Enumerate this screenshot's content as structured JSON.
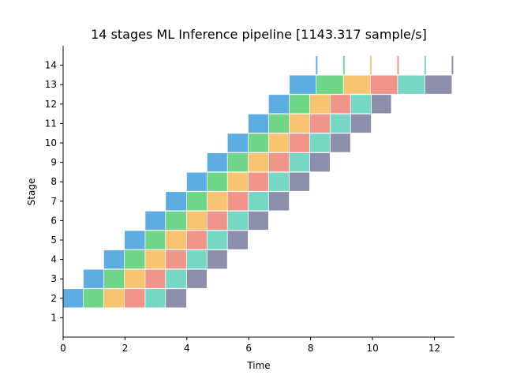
{
  "chart_data": {
    "type": "bar",
    "subtype": "gantt",
    "title": "14 stages ML Inference pipeline [1143.317 sample/s]",
    "xlabel": "Time",
    "ylabel": "Stage",
    "xlim": [
      0,
      12.65
    ],
    "ylim": [
      0,
      15
    ],
    "x_ticks": [
      "0",
      "2",
      "4",
      "6",
      "8",
      "10",
      "12"
    ],
    "y_ticks": [
      "1",
      "2",
      "3",
      "4",
      "5",
      "6",
      "7",
      "8",
      "9",
      "10",
      "11",
      "12",
      "13",
      "14"
    ],
    "grid": false,
    "spines_visible": [
      "left",
      "bottom"
    ],
    "bar_height": 0.95,
    "segment_colors": [
      "#5dade2",
      "#6fd688",
      "#f8c471",
      "#f1948a",
      "#76d7c4",
      "#8c8fab"
    ],
    "rows": [
      {
        "stage": 2,
        "segments": [
          [
            0,
            0.64
          ],
          [
            0.66,
            1.3
          ],
          [
            1.32,
            1.97
          ],
          [
            1.99,
            2.64
          ],
          [
            2.66,
            3.3
          ],
          [
            3.32,
            3.98
          ]
        ]
      },
      {
        "stage": 3,
        "segments": [
          [
            0.66,
            1.3
          ],
          [
            1.32,
            1.97
          ],
          [
            1.99,
            2.64
          ],
          [
            2.66,
            3.3
          ],
          [
            3.32,
            3.98
          ],
          [
            4.0,
            4.64
          ]
        ]
      },
      {
        "stage": 4,
        "segments": [
          [
            1.32,
            1.97
          ],
          [
            1.99,
            2.64
          ],
          [
            2.66,
            3.3
          ],
          [
            3.32,
            3.98
          ],
          [
            4.0,
            4.64
          ],
          [
            4.66,
            5.3
          ]
        ]
      },
      {
        "stage": 5,
        "segments": [
          [
            1.99,
            2.64
          ],
          [
            2.66,
            3.3
          ],
          [
            3.32,
            3.98
          ],
          [
            4.0,
            4.64
          ],
          [
            4.66,
            5.3
          ],
          [
            5.32,
            5.97
          ]
        ]
      },
      {
        "stage": 6,
        "segments": [
          [
            2.66,
            3.3
          ],
          [
            3.32,
            3.98
          ],
          [
            4.0,
            4.64
          ],
          [
            4.66,
            5.3
          ],
          [
            5.32,
            5.97
          ],
          [
            5.99,
            6.63
          ]
        ]
      },
      {
        "stage": 7,
        "segments": [
          [
            3.32,
            3.98
          ],
          [
            4.0,
            4.64
          ],
          [
            4.66,
            5.3
          ],
          [
            5.32,
            5.97
          ],
          [
            5.99,
            6.63
          ],
          [
            6.65,
            7.3
          ]
        ]
      },
      {
        "stage": 8,
        "segments": [
          [
            4.0,
            4.64
          ],
          [
            4.66,
            5.3
          ],
          [
            5.32,
            5.97
          ],
          [
            5.99,
            6.63
          ],
          [
            6.65,
            7.3
          ],
          [
            7.32,
            7.96
          ]
        ]
      },
      {
        "stage": 9,
        "segments": [
          [
            4.66,
            5.3
          ],
          [
            5.32,
            5.97
          ],
          [
            5.99,
            6.63
          ],
          [
            6.65,
            7.3
          ],
          [
            7.32,
            7.96
          ],
          [
            7.98,
            8.62
          ]
        ]
      },
      {
        "stage": 10,
        "segments": [
          [
            5.32,
            5.97
          ],
          [
            5.99,
            6.63
          ],
          [
            6.65,
            7.3
          ],
          [
            7.32,
            7.96
          ],
          [
            7.98,
            8.62
          ],
          [
            8.64,
            9.28
          ]
        ]
      },
      {
        "stage": 11,
        "segments": [
          [
            5.99,
            6.63
          ],
          [
            6.65,
            7.3
          ],
          [
            7.32,
            7.96
          ],
          [
            7.98,
            8.62
          ],
          [
            8.64,
            9.28
          ],
          [
            9.3,
            9.95
          ]
        ]
      },
      {
        "stage": 12,
        "segments": [
          [
            6.65,
            7.3
          ],
          [
            7.32,
            7.96
          ],
          [
            7.98,
            8.62
          ],
          [
            8.64,
            9.28
          ],
          [
            9.3,
            9.95
          ],
          [
            9.97,
            10.6
          ]
        ]
      },
      {
        "stage": 13,
        "segments": [
          [
            7.32,
            8.17
          ],
          [
            8.19,
            9.05
          ],
          [
            9.07,
            9.92
          ],
          [
            9.94,
            10.8
          ],
          [
            10.82,
            11.68
          ],
          [
            11.7,
            12.56
          ]
        ]
      },
      {
        "stage": 14,
        "segments": [
          [
            8.17,
            8.22
          ],
          [
            9.05,
            9.1
          ],
          [
            9.92,
            9.97
          ],
          [
            10.8,
            10.85
          ],
          [
            11.68,
            11.73
          ],
          [
            12.56,
            12.61
          ]
        ]
      }
    ]
  }
}
